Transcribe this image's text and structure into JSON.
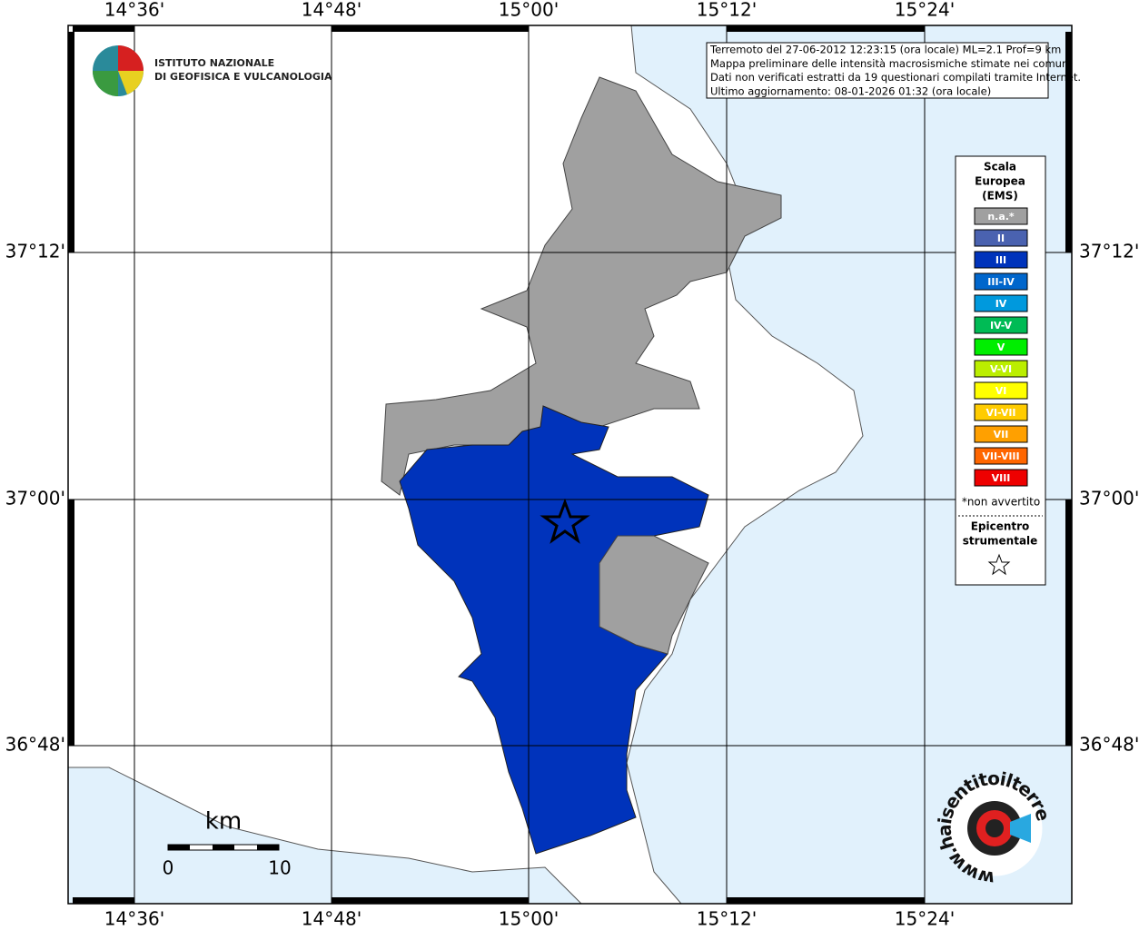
{
  "axes": {
    "top_ticks": [
      "14°36'",
      "14°48'",
      "15°00'",
      "15°12'",
      "15°24'"
    ],
    "bottom_ticks": [
      "14°36'",
      "14°48'",
      "15°00'",
      "15°12'",
      "15°24'"
    ],
    "left_ticks": [
      "37°12'",
      "37°00'",
      "36°48'"
    ],
    "right_ticks": [
      "37°12'",
      "37°00'",
      "36°48'"
    ]
  },
  "logo": {
    "line1": "ISTITUTO NAZIONALE",
    "line2": "DI GEOFISICA E VULCANOLOGIA"
  },
  "info": {
    "lines": [
      "Terremoto del 27-06-2012 12:23:15 (ora locale) ML=2.1 Prof=9 km",
      "Mappa preliminare delle intensità macrosismiche stimate nei comuni",
      "Dati non verificati estratti da 19 questionari compilati tramite Internet.",
      "Ultimo aggiornamento: 08-01-2026 01:32 (ora locale)"
    ]
  },
  "legend": {
    "title": [
      "Scala",
      "Europea",
      "(EMS)"
    ],
    "items": [
      {
        "label": "n.a.*",
        "color": "#a0a0a0"
      },
      {
        "label": "II",
        "color": "#4a62b0"
      },
      {
        "label": "III",
        "color": "#0033bb"
      },
      {
        "label": "III-IV",
        "color": "#0066cc"
      },
      {
        "label": "IV",
        "color": "#0099dd"
      },
      {
        "label": "IV-V",
        "color": "#00bb55"
      },
      {
        "label": "V",
        "color": "#00ee00"
      },
      {
        "label": "V-VI",
        "color": "#bbee00"
      },
      {
        "label": "VI",
        "color": "#ffff00"
      },
      {
        "label": "VI-VII",
        "color": "#ffcc00"
      },
      {
        "label": "VII",
        "color": "#ffa000"
      },
      {
        "label": "VII-VIII",
        "color": "#ff6600"
      },
      {
        "label": "VIII",
        "color": "#ee0000"
      }
    ],
    "note": "*non avvertito",
    "epicenter": [
      "Epicentro",
      "strumentale"
    ]
  },
  "scale_bar": {
    "unit": "km",
    "labels": [
      "0",
      "10"
    ]
  },
  "site_logo": {
    "text": "www.haisentitoilterremoto.it"
  }
}
